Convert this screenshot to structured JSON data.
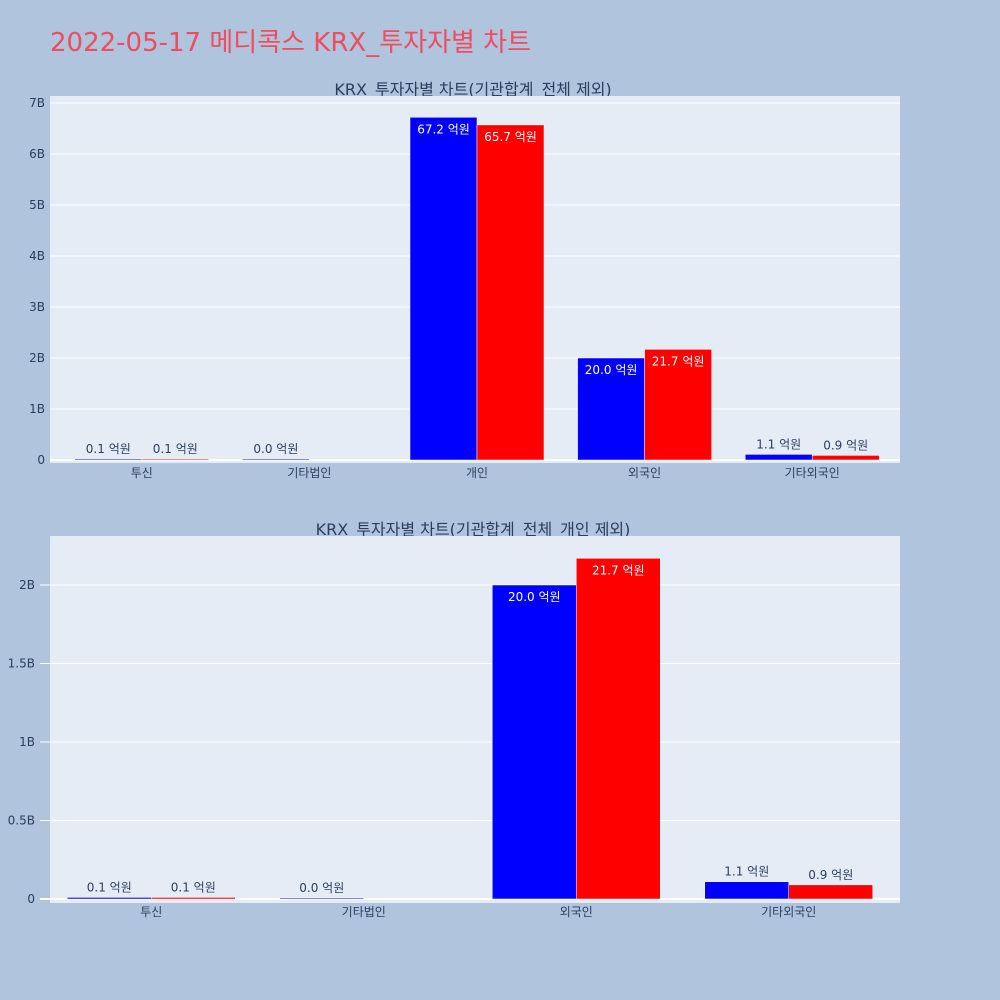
{
  "page": {
    "title": "2022-05-17 메디콕스 KRX_투자자별 차트"
  },
  "colors": {
    "background": "#b0c4de",
    "plot_bg": "#e5ecf6",
    "grid": "#ffffff",
    "series_a": "#0000ff",
    "series_b": "#ff0000",
    "title": "#ef4c5e",
    "text": "#2a3f5f"
  },
  "chart_data": [
    {
      "type": "bar",
      "title": "KRX_투자자별 차트(기관합계_전체 제외)",
      "categories": [
        "투신",
        "기타법인",
        "개인",
        "외국인",
        "기타외국인"
      ],
      "series": [
        {
          "color": "#0000ff",
          "values": [
            10000000,
            500000,
            6720000000,
            2000000000,
            110000000
          ],
          "labels": [
            "0.1 억원",
            "0.0 억원",
            "67.2 억원",
            "20.0 억원",
            "1.1 억원"
          ]
        },
        {
          "color": "#ff0000",
          "values": [
            10000000,
            0,
            6570000000,
            2170000000,
            90000000
          ],
          "labels": [
            "0.1 억원",
            "",
            "65.7 억원",
            "21.7 억원",
            "0.9 억원"
          ]
        }
      ],
      "ylim": [
        0,
        7000000000
      ],
      "yticks": [
        0,
        1000000000,
        2000000000,
        3000000000,
        4000000000,
        5000000000,
        6000000000,
        7000000000
      ],
      "ytick_labels": [
        "0",
        "1B",
        "2B",
        "3B",
        "4B",
        "5B",
        "6B",
        "7B"
      ],
      "grid": true
    },
    {
      "type": "bar",
      "title": "KRX_투자자별 차트(기관합계_전체_개인 제외)",
      "categories": [
        "투신",
        "기타법인",
        "외국인",
        "기타외국인"
      ],
      "series": [
        {
          "color": "#0000ff",
          "values": [
            10000000,
            500000,
            2000000000,
            110000000
          ],
          "labels": [
            "0.1 억원",
            "0.0 억원",
            "20.0 억원",
            "1.1 억원"
          ]
        },
        {
          "color": "#ff0000",
          "values": [
            10000000,
            0,
            2170000000,
            90000000
          ],
          "labels": [
            "0.1 억원",
            "",
            "21.7 억원",
            "0.9 억원"
          ]
        }
      ],
      "ylim": [
        0,
        2300000000
      ],
      "yticks": [
        0,
        500000000,
        1000000000,
        1500000000,
        2000000000
      ],
      "ytick_labels": [
        "0",
        "0.5B",
        "1B",
        "1.5B",
        "2B"
      ],
      "grid": true
    }
  ]
}
